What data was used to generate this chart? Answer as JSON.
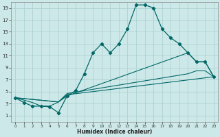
{
  "xlabel": "Humidex (Indice chaleur)",
  "bg_color": "#cce8e8",
  "line_color": "#006666",
  "grid_color": "#aacece",
  "xlim": [
    -0.5,
    23.5
  ],
  "ylim": [
    0,
    20
  ],
  "xticks": [
    0,
    1,
    2,
    3,
    4,
    5,
    6,
    7,
    8,
    9,
    10,
    11,
    12,
    13,
    14,
    15,
    16,
    17,
    18,
    19,
    20,
    21,
    22,
    23
  ],
  "yticks": [
    1,
    3,
    5,
    7,
    9,
    11,
    13,
    15,
    17,
    19
  ],
  "curve1_x": [
    0,
    1,
    2,
    3,
    4,
    5,
    6,
    7,
    8,
    9,
    10,
    11,
    12,
    13,
    14,
    15,
    16,
    17,
    18,
    19,
    20,
    21,
    22,
    23
  ],
  "curve1_y": [
    4,
    3.2,
    2.6,
    2.6,
    2.5,
    1.5,
    4.3,
    5.2,
    8,
    11.5,
    13,
    11.5,
    13,
    15.5,
    19.5,
    19.5,
    19,
    15.5,
    14,
    13,
    11.5,
    10,
    10,
    7.5
  ],
  "curve2_x": [
    0,
    2,
    3,
    4,
    5,
    6,
    20,
    21,
    22,
    23
  ],
  "curve2_y": [
    4,
    3.2,
    2.6,
    2.6,
    3.3,
    4.3,
    11.5,
    10,
    10,
    7.5
  ],
  "curve3_x": [
    0,
    5,
    6,
    23
  ],
  "curve3_y": [
    4,
    3.3,
    4.5,
    7.5
  ],
  "curve4_x": [
    0,
    5,
    6,
    20,
    21,
    22,
    23
  ],
  "curve4_y": [
    4,
    3.3,
    4.7,
    8,
    8.5,
    8.5,
    7.5
  ]
}
